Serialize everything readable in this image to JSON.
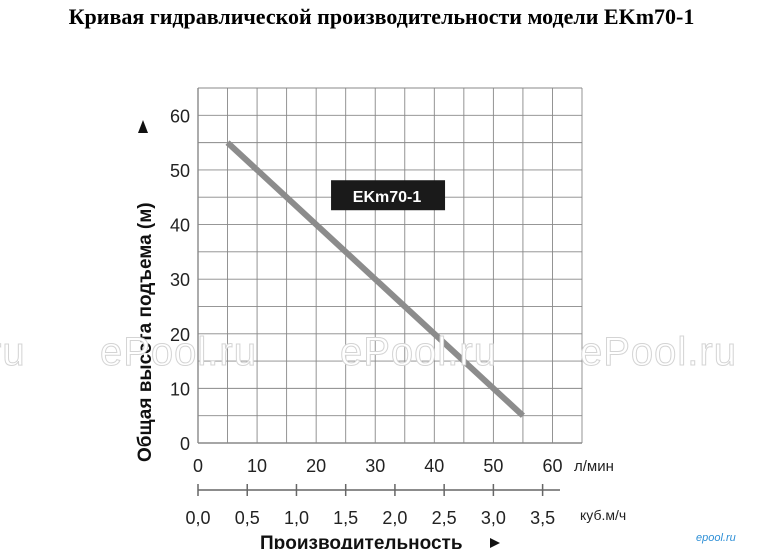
{
  "title": "Кривая гидравлической производительности модели EKm70-1",
  "watermark_text": "ePool.ru",
  "watermark_partial": "ru",
  "corner_logo": "epool.ru",
  "colors": {
    "curve": "#8c8c8c",
    "grid": "#888888",
    "label_bg": "#1a1a1a",
    "label_fg": "#ffffff"
  },
  "chart_data": {
    "type": "line",
    "series": [
      {
        "name": "EKm70-1",
        "x": [
          5,
          55
        ],
        "y": [
          55,
          5
        ]
      }
    ],
    "xlabel": "Производительность",
    "ylabel": "Общая высота подъема (м)",
    "x_unit": "л/мин",
    "x2_unit": "куб.м/ч",
    "xlim": [
      0,
      65
    ],
    "ylim": [
      0,
      65
    ],
    "x_ticks": [
      "0",
      "10",
      "20",
      "30",
      "40",
      "50",
      "60"
    ],
    "x2_ticks": [
      "0,0",
      "0,5",
      "1,0",
      "1,5",
      "2,0",
      "2,5",
      "3,0",
      "3,5"
    ],
    "y_ticks": [
      "0",
      "10",
      "20",
      "30",
      "40",
      "50",
      "60"
    ],
    "grid": true
  }
}
